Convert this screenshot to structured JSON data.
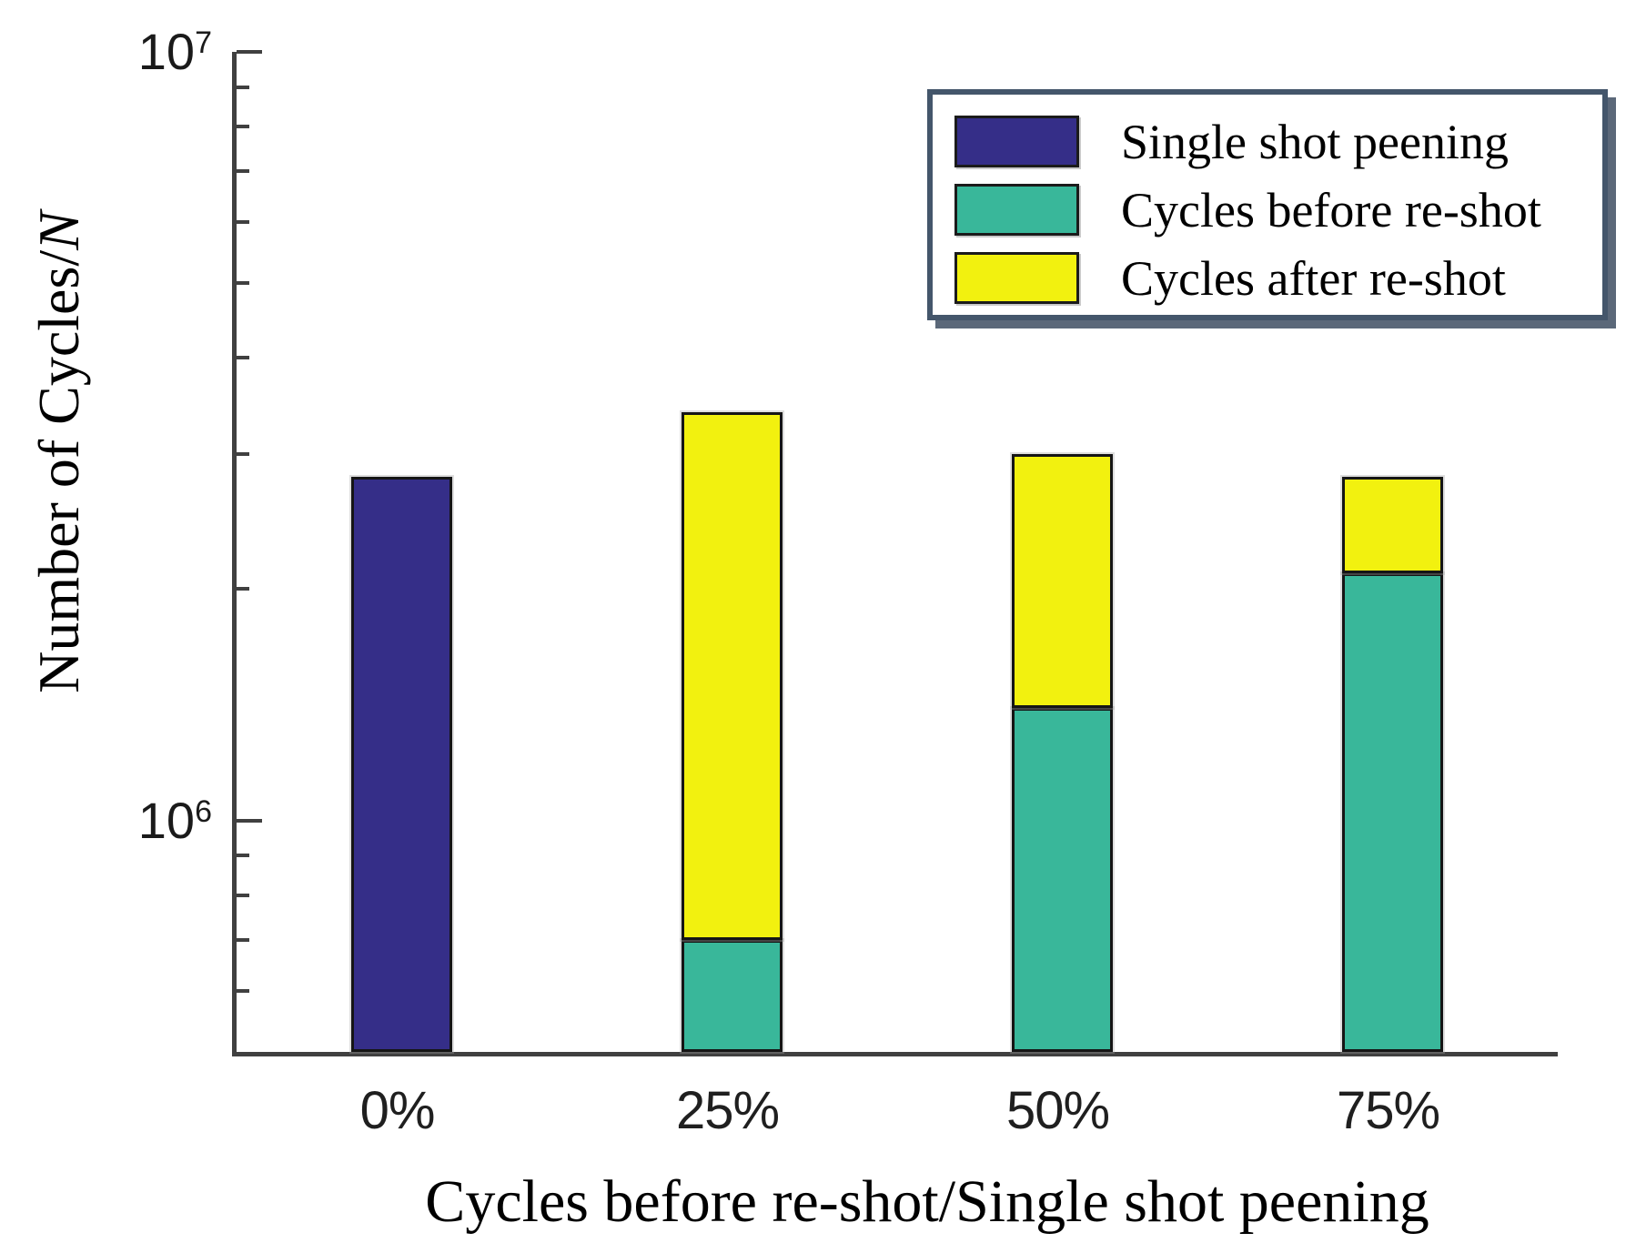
{
  "chart_data": {
    "type": "bar",
    "stacked": true,
    "title": "",
    "xlabel": "Cycles before re-shot/Single shot peening",
    "ylabel": "Number of Cycles/N",
    "ylabel_plain": "Number of Cycles/",
    "ylabel_italic": "N",
    "yscale": "log",
    "ylim": [
      500000,
      10000000
    ],
    "grid": false,
    "legend_position": "upper right",
    "categories": [
      "0%",
      "25%",
      "50%",
      "75%"
    ],
    "ytick_major_labels": [
      {
        "base": "10",
        "exp": "7",
        "value": 10000000
      },
      {
        "base": "10",
        "exp": "6",
        "value": 1000000
      }
    ],
    "series": [
      {
        "name": "Single shot peening",
        "color": "#352E88",
        "values": [
          2800000,
          0,
          0,
          0
        ]
      },
      {
        "name": "Cycles before re-shot",
        "color": "#39B79A",
        "values": [
          0,
          700000,
          1400000,
          2100000
        ]
      },
      {
        "name": "Cycles after re-shot",
        "color": "#F2F10F",
        "values": [
          0,
          2700000,
          1600000,
          700000
        ]
      }
    ],
    "stack_totals": [
      2800000,
      3400000,
      3000000,
      2800000
    ]
  },
  "colors": {
    "axis": "#404040",
    "bar_edge": "#151515",
    "legend_border": "#44566B",
    "background": "#FFFFFF"
  }
}
